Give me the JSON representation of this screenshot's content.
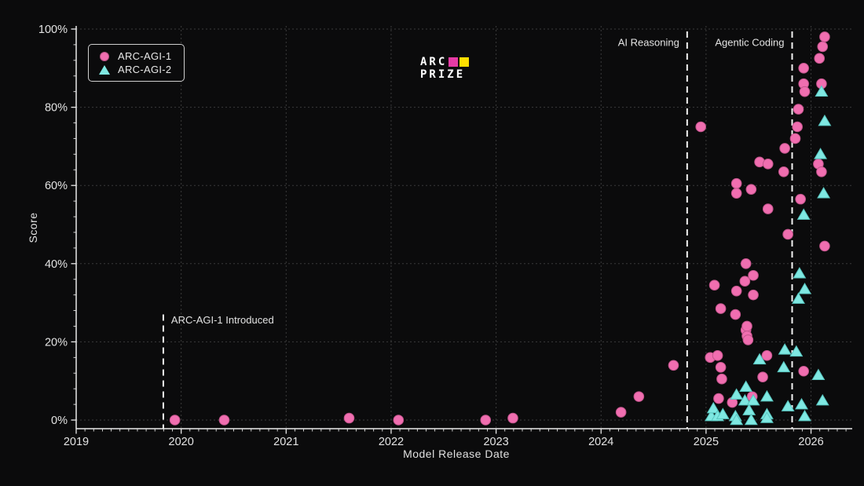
{
  "page": {
    "background": "#0b0b0c"
  },
  "legend": {
    "items": [
      {
        "label": "ARC-AGI-1",
        "marker": "circle",
        "color": "#f06eb0"
      },
      {
        "label": "ARC-AGI-2",
        "marker": "triangle",
        "color": "#7fe8e2"
      }
    ]
  },
  "logo": {
    "line1": "ARC",
    "line2": "PRIZE",
    "square1_color": "#e63ba5",
    "square2_color": "#ffdf00"
  },
  "chart_data": {
    "type": "scatter",
    "title": "",
    "xlabel": "Model Release Date",
    "ylabel": "Score",
    "xlim": [
      2019,
      2026.4
    ],
    "ylim": [
      0,
      100
    ],
    "grid": true,
    "legend_position": "upper-left",
    "x_axis": {
      "label": "Model Release Date",
      "ticks": [
        {
          "v": 2019,
          "label": "2019"
        },
        {
          "v": 2020,
          "label": "2020"
        },
        {
          "v": 2021,
          "label": "2021"
        },
        {
          "v": 2022,
          "label": "2022"
        },
        {
          "v": 2023,
          "label": "2023"
        },
        {
          "v": 2024,
          "label": "2024"
        },
        {
          "v": 2025,
          "label": "2025"
        },
        {
          "v": 2026,
          "label": "2026"
        }
      ]
    },
    "y_axis": {
      "label": "Score",
      "ticks": [
        {
          "v": 0,
          "label": "0%"
        },
        {
          "v": 20,
          "label": "20%"
        },
        {
          "v": 40,
          "label": "40%"
        },
        {
          "v": 60,
          "label": "60%"
        },
        {
          "v": 80,
          "label": "80%"
        },
        {
          "v": 100,
          "label": "100%"
        }
      ]
    },
    "events": [
      {
        "label": "ARC-AGI-1 Introduced",
        "x": 2019.83,
        "label_side": "right",
        "top_percent": 27,
        "label_y_percent": 25.5
      },
      {
        "label": "AI Reasoning",
        "x": 2024.82,
        "label_side": "left",
        "top_percent": 100,
        "label_y_percent": 96.5
      },
      {
        "label": "Agentic Coding",
        "x": 2025.82,
        "label_side": "left",
        "top_percent": 100,
        "label_y_percent": 96.5
      }
    ],
    "series": [
      {
        "name": "ARC-AGI-1",
        "marker": "circle",
        "color": "#f06eb0",
        "edge_color": "#c2558c",
        "points": [
          [
            2019.94,
            0
          ],
          [
            2020.41,
            0
          ],
          [
            2021.6,
            0.5
          ],
          [
            2022.07,
            0
          ],
          [
            2022.9,
            0
          ],
          [
            2023.16,
            0.5
          ],
          [
            2024.19,
            2
          ],
          [
            2024.36,
            6
          ],
          [
            2024.69,
            14
          ],
          [
            2024.95,
            75
          ],
          [
            2025.04,
            16
          ],
          [
            2025.08,
            34.5
          ],
          [
            2025.11,
            16.5
          ],
          [
            2025.12,
            5.5
          ],
          [
            2025.14,
            13.5
          ],
          [
            2025.14,
            28.5
          ],
          [
            2025.15,
            10.5
          ],
          [
            2025.25,
            4.5
          ],
          [
            2025.28,
            27
          ],
          [
            2025.29,
            33
          ],
          [
            2025.29,
            60.5
          ],
          [
            2025.29,
            58
          ],
          [
            2025.37,
            35.5
          ],
          [
            2025.38,
            40
          ],
          [
            2025.38,
            23
          ],
          [
            2025.39,
            24
          ],
          [
            2025.39,
            21.5
          ],
          [
            2025.4,
            20.5
          ],
          [
            2025.43,
            59
          ],
          [
            2025.44,
            6
          ],
          [
            2025.45,
            37
          ],
          [
            2025.45,
            32
          ],
          [
            2025.51,
            66
          ],
          [
            2025.54,
            11
          ],
          [
            2025.58,
            16.5
          ],
          [
            2025.59,
            65.5
          ],
          [
            2025.59,
            54
          ],
          [
            2025.74,
            63.5
          ],
          [
            2025.75,
            69.5
          ],
          [
            2025.78,
            47.5
          ],
          [
            2025.85,
            72
          ],
          [
            2025.87,
            75
          ],
          [
            2025.88,
            79.5
          ],
          [
            2025.9,
            56.5
          ],
          [
            2025.93,
            90
          ],
          [
            2025.93,
            86
          ],
          [
            2025.94,
            84
          ],
          [
            2025.93,
            12.5
          ],
          [
            2026.07,
            65.5
          ],
          [
            2026.08,
            92.5
          ],
          [
            2026.1,
            86
          ],
          [
            2026.1,
            63.5
          ],
          [
            2026.11,
            95.5
          ],
          [
            2026.13,
            98
          ],
          [
            2026.13,
            44.5
          ]
        ]
      },
      {
        "name": "ARC-AGI-2",
        "marker": "triangle",
        "color": "#7fe8e2",
        "edge_color": "#58c6c0",
        "points": [
          [
            2025.05,
            1
          ],
          [
            2025.07,
            3
          ],
          [
            2025.11,
            1
          ],
          [
            2025.16,
            1.5
          ],
          [
            2025.28,
            1
          ],
          [
            2025.29,
            0
          ],
          [
            2025.29,
            6.5
          ],
          [
            2025.37,
            5
          ],
          [
            2025.38,
            8.5
          ],
          [
            2025.41,
            2.5
          ],
          [
            2025.43,
            0
          ],
          [
            2025.45,
            5
          ],
          [
            2025.51,
            15.5
          ],
          [
            2025.58,
            6
          ],
          [
            2025.58,
            1.5
          ],
          [
            2025.58,
            0.5
          ],
          [
            2025.74,
            13.5
          ],
          [
            2025.75,
            18
          ],
          [
            2025.78,
            3.5
          ],
          [
            2025.86,
            17.5
          ],
          [
            2025.88,
            31
          ],
          [
            2025.89,
            37.5
          ],
          [
            2025.91,
            4
          ],
          [
            2025.93,
            52.5
          ],
          [
            2025.94,
            33.5
          ],
          [
            2025.94,
            1
          ],
          [
            2026.07,
            11.5
          ],
          [
            2026.09,
            68
          ],
          [
            2026.1,
            84
          ],
          [
            2026.11,
            5
          ],
          [
            2026.12,
            58
          ],
          [
            2026.13,
            76.5
          ]
        ]
      }
    ]
  }
}
